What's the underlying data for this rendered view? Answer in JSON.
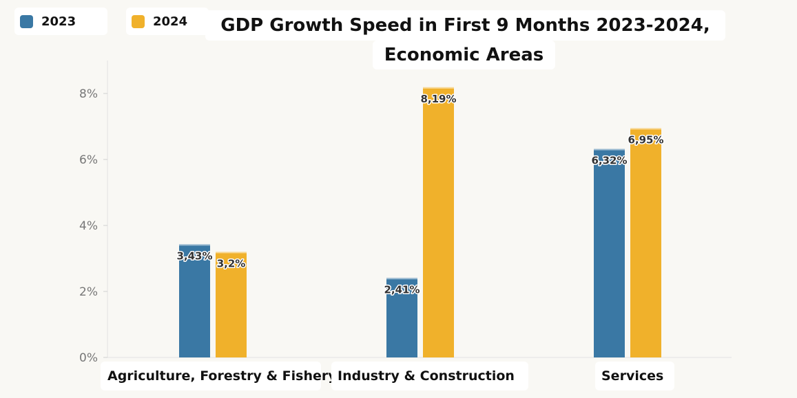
{
  "legend": [
    {
      "label": "2023",
      "color": "#3a78a4"
    },
    {
      "label": "2024",
      "color": "#f0b12b"
    }
  ],
  "title_line1": "GDP Growth Speed in First 9 Months 2023-2024,",
  "title_line2": "Economic Areas",
  "chart_data": {
    "type": "bar",
    "title": "GDP Growth Speed in First 9 Months 2023-2024, Economic Areas",
    "categories": [
      "Agriculture, Forestry & Fishery",
      "Industry & Construction",
      "Services"
    ],
    "series": [
      {
        "name": "2023",
        "color": "#3a78a4",
        "values": [
          3.43,
          2.41,
          6.32
        ],
        "labels": [
          "3,43%",
          "2,41%",
          "6,32%"
        ]
      },
      {
        "name": "2024",
        "color": "#f0b12b",
        "values": [
          3.2,
          8.19,
          6.95
        ],
        "labels": [
          "3,2%",
          "8,19%",
          "6,95%"
        ]
      }
    ],
    "y_ticks": [
      0,
      2,
      4,
      6,
      8
    ],
    "y_tick_labels": [
      "0%",
      "2%",
      "4%",
      "6%",
      "8%"
    ],
    "ylim": [
      0,
      9
    ],
    "grid": false,
    "legend_position": "top-left",
    "xlabel": "",
    "ylabel": ""
  }
}
